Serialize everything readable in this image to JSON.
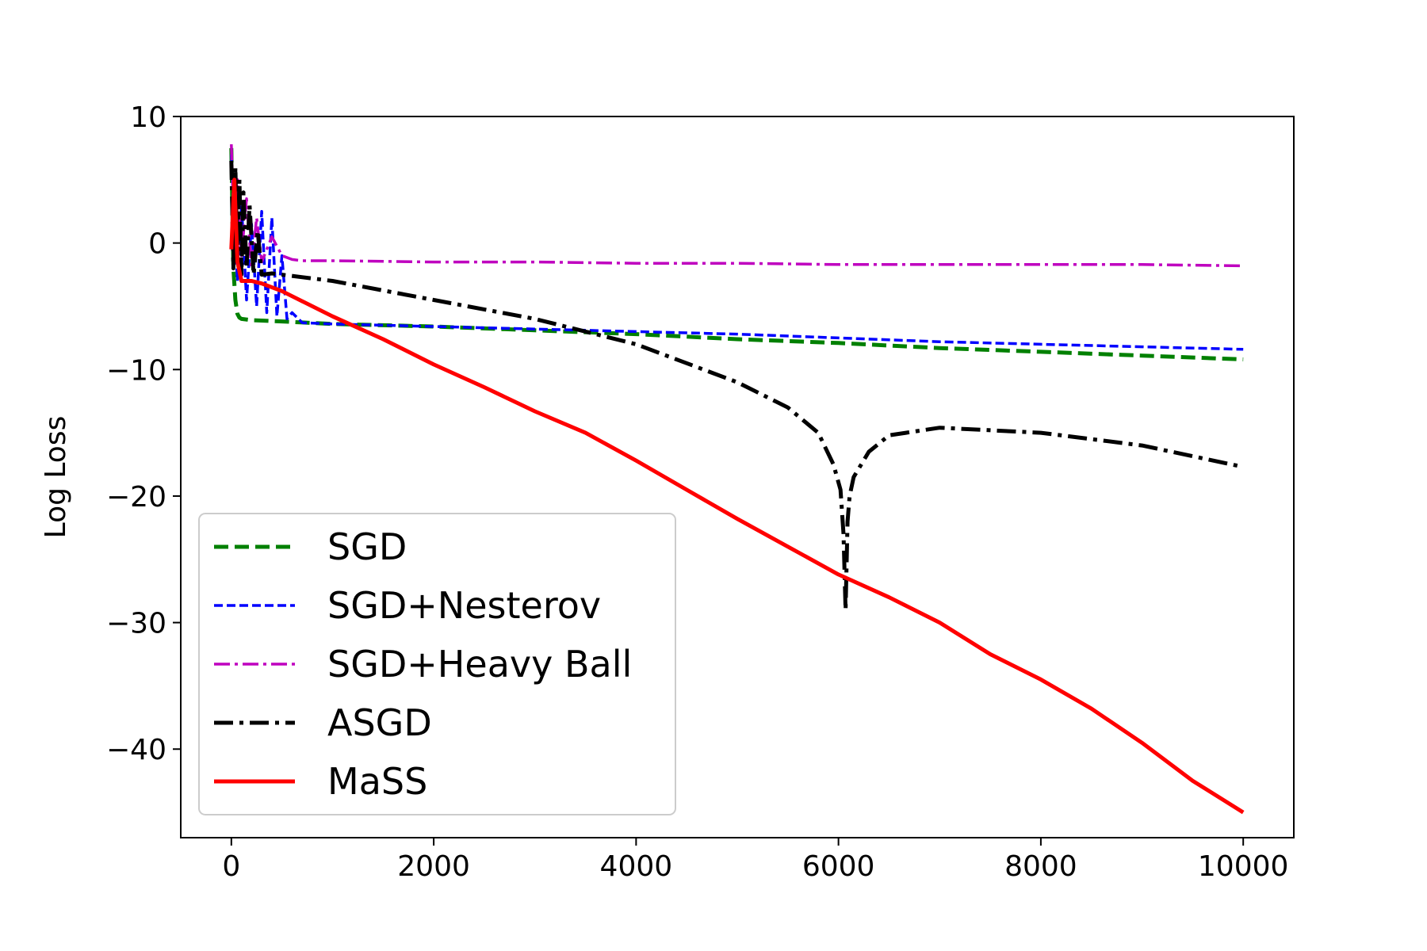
{
  "chart_data": {
    "type": "line",
    "title": "",
    "xlabel": "",
    "ylabel": "Log Loss",
    "xlim": [
      -500,
      10500
    ],
    "ylim": [
      -47,
      10
    ],
    "xticks": [
      0,
      2000,
      4000,
      6000,
      8000,
      10000
    ],
    "xtick_labels": [
      "0",
      "2000",
      "4000",
      "6000",
      "8000",
      "10000"
    ],
    "yticks": [
      10,
      0,
      -10,
      -20,
      -30,
      -40
    ],
    "ytick_labels": [
      "10",
      "0",
      "−10",
      "−20",
      "−30",
      "−40"
    ],
    "grid": false,
    "legend_position": "lower-left",
    "series": [
      {
        "name": "SGD",
        "color": "#008000",
        "style": "dashed",
        "x": [
          0,
          20,
          40,
          60,
          80,
          100,
          200,
          500,
          1000,
          2000,
          3000,
          4000,
          5000,
          6000,
          7000,
          8000,
          9000,
          10000
        ],
        "y": [
          7.5,
          -2.0,
          -4.5,
          -5.6,
          -5.9,
          -6.0,
          -6.1,
          -6.2,
          -6.4,
          -6.6,
          -6.9,
          -7.2,
          -7.6,
          -7.9,
          -8.3,
          -8.6,
          -8.9,
          -9.2
        ]
      },
      {
        "name": "SGD+Nesterov",
        "color": "#0000ff",
        "style": "dashed-fine",
        "x": [
          0,
          30,
          60,
          100,
          150,
          200,
          250,
          300,
          350,
          400,
          450,
          500,
          550,
          600,
          700,
          1000,
          2000,
          3000,
          4000,
          5000,
          6000,
          7000,
          8000,
          9000,
          10000
        ],
        "y": [
          7.0,
          1.5,
          -3.0,
          3.0,
          -4.5,
          1.5,
          -5.0,
          2.5,
          -5.5,
          2.0,
          -5.8,
          -1.0,
          -6.0,
          -5.5,
          -6.3,
          -6.4,
          -6.6,
          -6.8,
          -7.0,
          -7.2,
          -7.5,
          -7.8,
          -8.0,
          -8.2,
          -8.4
        ]
      },
      {
        "name": "SGD+Heavy Ball",
        "color": "#bf00bf",
        "style": "dashdot",
        "x": [
          0,
          30,
          60,
          100,
          150,
          200,
          250,
          300,
          400,
          500,
          600,
          700,
          1000,
          2000,
          3000,
          4000,
          5000,
          6000,
          7000,
          8000,
          9000,
          10000
        ],
        "y": [
          7.8,
          1.0,
          5.0,
          -1.0,
          3.5,
          -2.0,
          2.0,
          -1.5,
          0.5,
          -1.0,
          -1.3,
          -1.4,
          -1.4,
          -1.5,
          -1.5,
          -1.6,
          -1.6,
          -1.7,
          -1.7,
          -1.7,
          -1.7,
          -1.8
        ]
      },
      {
        "name": "ASGD",
        "color": "#000000",
        "style": "dashdot-bold",
        "x": [
          0,
          20,
          40,
          60,
          80,
          100,
          120,
          150,
          180,
          220,
          260,
          300,
          400,
          500,
          1000,
          2000,
          3000,
          4000,
          5000,
          5500,
          5800,
          5950,
          6020,
          6050,
          6070,
          6090,
          6110,
          6150,
          6300,
          6500,
          7000,
          8000,
          9000,
          10000
        ],
        "y": [
          6.5,
          -2.0,
          6.0,
          -1.5,
          5.0,
          -2.5,
          4.0,
          -2.0,
          3.0,
          -2.5,
          1.0,
          -2.5,
          -2.4,
          -2.5,
          -3.0,
          -4.5,
          -6.0,
          -8.0,
          -11.0,
          -13.0,
          -15.0,
          -17.5,
          -19.5,
          -23.0,
          -29.0,
          -22.0,
          -20.0,
          -18.5,
          -16.5,
          -15.2,
          -14.6,
          -15.0,
          -16.0,
          -17.7
        ]
      },
      {
        "name": "MaSS",
        "color": "#ff0000",
        "style": "solid",
        "x": [
          0,
          30,
          60,
          100,
          200,
          300,
          500,
          700,
          1000,
          1500,
          2000,
          2500,
          3000,
          3500,
          4000,
          4500,
          5000,
          5500,
          6000,
          6500,
          7000,
          7500,
          8000,
          8500,
          9000,
          9500,
          10000
        ],
        "y": [
          -0.5,
          5.0,
          -1.5,
          -3.0,
          -3.0,
          -3.2,
          -3.8,
          -4.6,
          -5.8,
          -7.6,
          -9.6,
          -11.4,
          -13.3,
          -15.0,
          -17.2,
          -19.5,
          -21.8,
          -24.0,
          -26.2,
          -28.0,
          -30.0,
          -32.5,
          -34.5,
          -36.8,
          -39.5,
          -42.5,
          -45.0
        ]
      }
    ]
  }
}
